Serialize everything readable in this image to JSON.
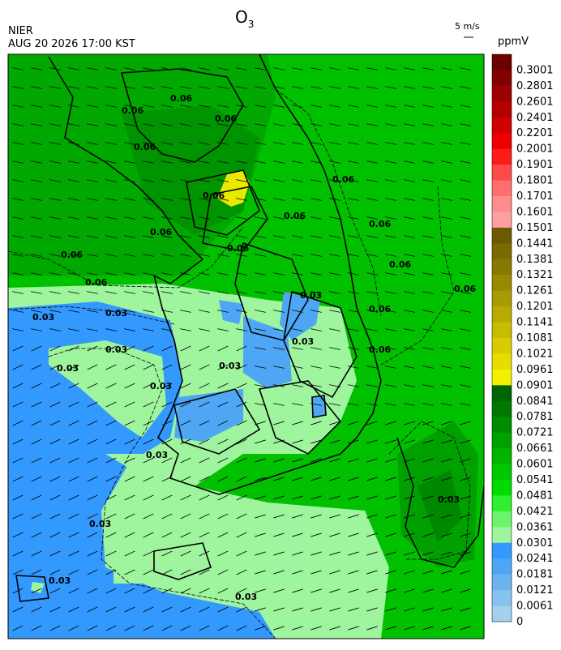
{
  "header": {
    "title": "O",
    "title_subscript": "3",
    "agency": "NIER",
    "timestamp": "AUG 20 2026 17:00 KST",
    "wind_scale": "5 m/s"
  },
  "colorbar": {
    "unit": "ppmV",
    "levels": [
      {
        "label": "0.3001",
        "color": "#6b0000"
      },
      {
        "label": "0.2801",
        "color": "#820000"
      },
      {
        "label": "0.2601",
        "color": "#9c0000"
      },
      {
        "label": "0.2401",
        "color": "#b50000"
      },
      {
        "label": "0.2201",
        "color": "#d00000"
      },
      {
        "label": "0.2001",
        "color": "#ec0000"
      },
      {
        "label": "0.1901",
        "color": "#ff1a1a"
      },
      {
        "label": "0.1801",
        "color": "#ff4a4a"
      },
      {
        "label": "0.1701",
        "color": "#ff6e6e"
      },
      {
        "label": "0.1601",
        "color": "#ff8c8c"
      },
      {
        "label": "0.1501",
        "color": "#ffa0a0"
      },
      {
        "label": "0.1441",
        "color": "#6b5a00"
      },
      {
        "label": "0.1381",
        "color": "#7a6a00"
      },
      {
        "label": "0.1321",
        "color": "#887a00"
      },
      {
        "label": "0.1261",
        "color": "#988a00"
      },
      {
        "label": "0.1201",
        "color": "#a89a00"
      },
      {
        "label": "0.1141",
        "color": "#b8aa00"
      },
      {
        "label": "0.1081",
        "color": "#c8bc00"
      },
      {
        "label": "0.1021",
        "color": "#d8cc00"
      },
      {
        "label": "0.0961",
        "color": "#e6dc00"
      },
      {
        "label": "0.0901",
        "color": "#f4f000"
      },
      {
        "label": "0.0841",
        "color": "#006400"
      },
      {
        "label": "0.0781",
        "color": "#007800"
      },
      {
        "label": "0.0721",
        "color": "#008c00"
      },
      {
        "label": "0.0661",
        "color": "#00a000"
      },
      {
        "label": "0.0601",
        "color": "#00b400"
      },
      {
        "label": "0.0541",
        "color": "#00c800"
      },
      {
        "label": "0.0481",
        "color": "#00dc00"
      },
      {
        "label": "0.0421",
        "color": "#2ef02e"
      },
      {
        "label": "0.0361",
        "color": "#6cf46c"
      },
      {
        "label": "0.0301",
        "color": "#9ef59e"
      },
      {
        "label": "0.0241",
        "color": "#3399ff"
      },
      {
        "label": "0.0181",
        "color": "#4fa6f5"
      },
      {
        "label": "0.0121",
        "color": "#6cb4f0"
      },
      {
        "label": "0.0061",
        "color": "#88c2ee"
      },
      {
        "label": "0",
        "color": "#a4d0ec"
      }
    ]
  },
  "contour_labels": [
    "0.06",
    "0.06",
    "0.06",
    "0.06",
    "0.06",
    "0.06",
    "0.06",
    "0.06",
    "0.06",
    "0.06",
    "0.06",
    "0.06",
    "0.06",
    "0.06",
    "0.06",
    "0.06",
    "0.03",
    "0.03",
    "0.03",
    "0.03",
    "0.03",
    "0.03",
    "0.03",
    "0.03",
    "0.03",
    "0.03",
    "0.03",
    "0.03",
    "0.03"
  ]
}
